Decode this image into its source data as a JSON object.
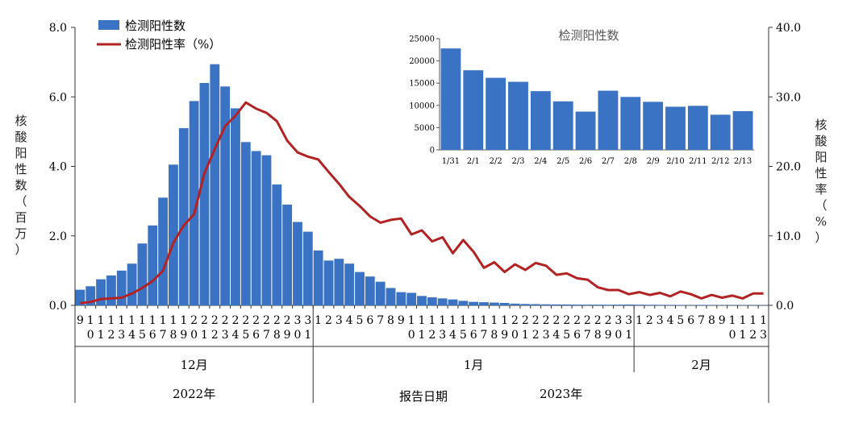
{
  "chart_data": {
    "type": "bar+line",
    "main": {
      "categories": [
        "12/9",
        "12/10",
        "12/11",
        "12/12",
        "12/13",
        "12/14",
        "12/15",
        "12/16",
        "12/17",
        "12/18",
        "12/19",
        "12/20",
        "12/21",
        "12/22",
        "12/23",
        "12/24",
        "12/25",
        "12/26",
        "12/27",
        "12/28",
        "12/29",
        "12/30",
        "12/31",
        "1/1",
        "1/2",
        "1/3",
        "1/4",
        "1/5",
        "1/6",
        "1/7",
        "1/8",
        "1/9",
        "1/10",
        "1/11",
        "1/12",
        "1/13",
        "1/14",
        "1/15",
        "1/16",
        "1/17",
        "1/18",
        "1/19",
        "1/20",
        "1/21",
        "1/22",
        "1/23",
        "1/24",
        "1/25",
        "1/26",
        "1/27",
        "1/28",
        "1/29",
        "1/30",
        "1/31",
        "2/1",
        "2/2",
        "2/3",
        "2/4",
        "2/5",
        "2/6",
        "2/7",
        "2/8",
        "2/9",
        "2/10",
        "2/11",
        "2/12",
        "2/13"
      ],
      "tick_labels": [
        "9",
        "10",
        "11",
        "12",
        "13",
        "14",
        "15",
        "16",
        "17",
        "18",
        "19",
        "20",
        "21",
        "22",
        "23",
        "24",
        "25",
        "26",
        "27",
        "28",
        "29",
        "30",
        "31",
        "1",
        "2",
        "3",
        "4",
        "5",
        "6",
        "7",
        "8",
        "9",
        "10",
        "11",
        "12",
        "13",
        "14",
        "15",
        "16",
        "17",
        "18",
        "19",
        "20",
        "21",
        "22",
        "23",
        "24",
        "25",
        "26",
        "27",
        "28",
        "29",
        "30",
        "31",
        "1",
        "2",
        "3",
        "4",
        "5",
        "6",
        "7",
        "8",
        "9",
        "10",
        "11",
        "12",
        "13"
      ],
      "series": [
        {
          "name": "检测阳性数",
          "type": "bar",
          "axis": "left",
          "color": "#3a73c4",
          "values": [
            0.45,
            0.55,
            0.75,
            0.86,
            1.0,
            1.2,
            1.78,
            2.3,
            3.1,
            4.05,
            5.1,
            5.88,
            6.4,
            6.94,
            6.3,
            5.67,
            4.7,
            4.44,
            4.32,
            3.48,
            2.9,
            2.4,
            2.12,
            1.58,
            1.29,
            1.34,
            1.2,
            0.96,
            0.83,
            0.68,
            0.5,
            0.38,
            0.36,
            0.27,
            0.23,
            0.2,
            0.17,
            0.13,
            0.1,
            0.09,
            0.08,
            0.07,
            0.05,
            0.04,
            0.035,
            0.03,
            0.027,
            0.025,
            0.022,
            0.02,
            0.02,
            0.018,
            0.02,
            0.023,
            0.018,
            0.016,
            0.015,
            0.013,
            0.011,
            0.009,
            0.013,
            0.012,
            0.011,
            0.01,
            0.01,
            0.008,
            0.009
          ]
        },
        {
          "name": "检测阳性率（%）",
          "type": "line",
          "axis": "right",
          "color": "#b22222",
          "values": [
            0.3,
            0.5,
            0.9,
            1.0,
            1.1,
            1.7,
            2.5,
            3.5,
            5.0,
            9.0,
            11.5,
            13.1,
            19.0,
            22.5,
            25.8,
            27.3,
            29.2,
            28.3,
            27.7,
            26.5,
            23.7,
            22.0,
            21.4,
            21.0,
            19.2,
            17.5,
            15.6,
            14.3,
            12.8,
            11.9,
            12.3,
            12.5,
            10.2,
            10.8,
            9.2,
            9.8,
            7.5,
            9.4,
            7.7,
            5.4,
            6.2,
            4.8,
            5.9,
            5.1,
            6.1,
            5.7,
            4.4,
            4.6,
            3.9,
            3.7,
            2.6,
            2.2,
            2.2,
            1.6,
            1.9,
            1.5,
            1.8,
            1.3,
            2.0,
            1.6,
            1.0,
            1.5,
            1.1,
            1.4,
            1.0,
            1.7,
            1.7
          ]
        }
      ],
      "ylabel_left": "核酸阳性数（百万）",
      "ylabel_right": "核酸阳性率（%）",
      "ylim_left": [
        0,
        8.0
      ],
      "ylim_right": [
        0,
        40.0
      ],
      "yticks_left": [
        "0.0",
        "2.0",
        "4.0",
        "6.0",
        "8.0"
      ],
      "yticks_right": [
        "0.0",
        "10.0",
        "20.0",
        "30.0",
        "40.0"
      ],
      "xlabel": "报告日期",
      "month_labels": [
        "12月",
        "1月",
        "2月"
      ],
      "year_labels": [
        "2022年",
        "2023年"
      ],
      "legend": [
        "检测阳性数",
        "检测阳性率（%）"
      ],
      "legend_position": "top-left"
    },
    "inset": {
      "type": "bar",
      "title": "检测阳性数",
      "categories": [
        "1/31",
        "2/1",
        "2/2",
        "2/3",
        "2/4",
        "2/5",
        "2/6",
        "2/7",
        "2/8",
        "2/9",
        "2/10",
        "2/11",
        "2/12",
        "2/13"
      ],
      "values": [
        22800,
        17900,
        16200,
        15300,
        13200,
        10900,
        8600,
        13300,
        11900,
        10800,
        9700,
        9900,
        7900,
        8700
      ],
      "ylim": [
        0,
        25000
      ],
      "yticks": [
        "0",
        "5000",
        "10000",
        "15000",
        "20000",
        "25000"
      ],
      "color": "#3a73c4",
      "position": "top-right"
    }
  }
}
